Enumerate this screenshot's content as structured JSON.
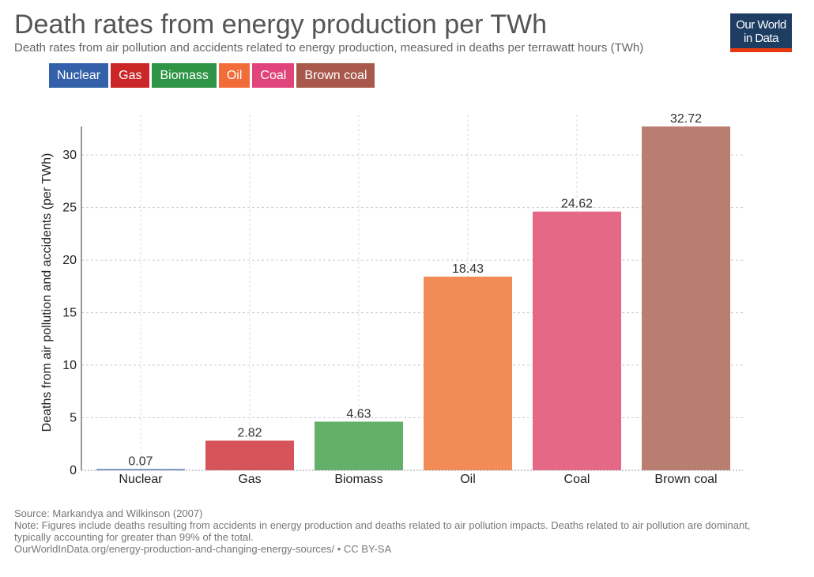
{
  "title": "Death rates from energy production per TWh",
  "subtitle": "Death rates from air pollution and accidents related to energy production, measured in deaths per terrawatt hours (TWh)",
  "logo": {
    "line1": "Our World",
    "line2": "in Data"
  },
  "legend": [
    {
      "label": "Nuclear",
      "color": "#3360a9"
    },
    {
      "label": "Gas",
      "color": "#ca2628"
    },
    {
      "label": "Biomass",
      "color": "#2e9446"
    },
    {
      "label": "Oil",
      "color": "#f26c3a"
    },
    {
      "label": "Coal",
      "color": "#e0447a"
    },
    {
      "label": "Brown coal",
      "color": "#a8594c"
    }
  ],
  "chart_data": {
    "type": "bar",
    "title": "Death rates from energy production per TWh",
    "ylabel": "Deaths from air pollution and accidents (per TWh)",
    "xlabel": "",
    "categories": [
      "Nuclear",
      "Gas",
      "Biomass",
      "Oil",
      "Coal",
      "Brown coal"
    ],
    "values": [
      0.07,
      2.82,
      4.63,
      18.43,
      24.62,
      32.72
    ],
    "value_labels": [
      "0.07",
      "2.82",
      "4.63",
      "18.43",
      "24.62",
      "32.72"
    ],
    "colors": [
      "#4a73b8",
      "#d65459",
      "#63b06b",
      "#f28c57",
      "#e66887",
      "#b97e70"
    ],
    "ylim": [
      0,
      32.72
    ],
    "yticks": [
      0,
      5,
      10,
      15,
      20,
      25,
      30
    ],
    "grid": true
  },
  "footer": {
    "source": "Source: Markandya and Wilkinson (2007)",
    "note_line1": "Note: Figures include deaths resulting from accidents in energy production and deaths related to air pollution impacts. Deaths related to air pollution are dominant,",
    "note_line2": "typically accounting for greater than 99% of the total.",
    "url": "OurWorldInData.org/energy-production-and-changing-energy-sources/ • CC BY-SA"
  }
}
